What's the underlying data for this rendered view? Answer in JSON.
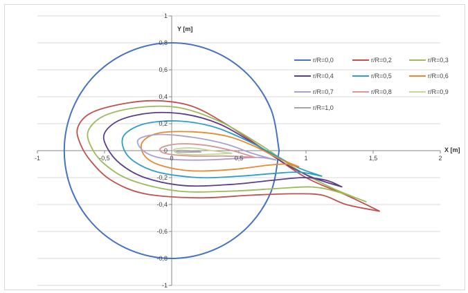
{
  "chart_data": {
    "type": "line",
    "title": "",
    "xlabel": "X [m]",
    "ylabel": "Y [m]",
    "xlim": [
      -1,
      2
    ],
    "ylim": [
      -1,
      1
    ],
    "x_ticks": [
      -1,
      -0.5,
      0,
      0.5,
      1,
      1.5,
      2
    ],
    "x_tick_labels": [
      "-1",
      "-0,5",
      "0",
      "0,5",
      "1",
      "1,5",
      "2"
    ],
    "y_ticks": [
      -1,
      -0.8,
      -0.6,
      -0.4,
      -0.2,
      0,
      0.2,
      0.4,
      0.6,
      0.8,
      1
    ],
    "y_tick_labels": [
      "-1",
      "-0,8",
      "-0,6",
      "-0,4",
      "-0,2",
      "0",
      "0,2",
      "0,4",
      "0,6",
      "0,8",
      "1"
    ],
    "grid": "horizontal",
    "legend_position": "top-right",
    "series": [
      {
        "name": "r/R=0,0",
        "color": "#4472C4",
        "points": [
          [
            0.8,
            0.0
          ],
          [
            0.739,
            0.306
          ],
          [
            0.566,
            0.566
          ],
          [
            0.306,
            0.739
          ],
          [
            0.0,
            0.8
          ],
          [
            -0.306,
            0.739
          ],
          [
            -0.566,
            0.566
          ],
          [
            -0.739,
            0.306
          ],
          [
            -0.8,
            0.0
          ],
          [
            -0.739,
            -0.306
          ],
          [
            -0.566,
            -0.566
          ],
          [
            -0.306,
            -0.739
          ],
          [
            0.0,
            -0.8
          ],
          [
            0.306,
            -0.739
          ],
          [
            0.566,
            -0.566
          ],
          [
            0.739,
            -0.306
          ],
          [
            0.8,
            0.0
          ]
        ]
      },
      {
        "name": "r/R=0,2",
        "color": "#C0504D",
        "points": [
          [
            1.55,
            -0.45
          ],
          [
            1.3,
            -0.33
          ],
          [
            1.0,
            -0.2
          ],
          [
            0.7,
            0.0
          ],
          [
            0.4,
            0.2
          ],
          [
            0.15,
            0.33
          ],
          [
            -0.1,
            0.37
          ],
          [
            -0.35,
            0.35
          ],
          [
            -0.6,
            0.28
          ],
          [
            -0.7,
            0.17
          ],
          [
            -0.68,
            0.05
          ],
          [
            -0.6,
            -0.08
          ],
          [
            -0.45,
            -0.22
          ],
          [
            -0.2,
            -0.32
          ],
          [
            0.2,
            -0.35
          ],
          [
            0.6,
            -0.33
          ],
          [
            0.9,
            -0.32
          ],
          [
            1.12,
            -0.33
          ],
          [
            1.3,
            -0.4
          ],
          [
            1.55,
            -0.45
          ]
        ]
      },
      {
        "name": "r/R=0,3",
        "color": "#9BBB59",
        "points": [
          [
            1.45,
            -0.38
          ],
          [
            1.2,
            -0.28
          ],
          [
            0.95,
            -0.15
          ],
          [
            0.65,
            0.05
          ],
          [
            0.35,
            0.22
          ],
          [
            0.05,
            0.32
          ],
          [
            -0.25,
            0.32
          ],
          [
            -0.5,
            0.26
          ],
          [
            -0.62,
            0.15
          ],
          [
            -0.6,
            0.03
          ],
          [
            -0.5,
            -0.1
          ],
          [
            -0.3,
            -0.22
          ],
          [
            0.05,
            -0.3
          ],
          [
            0.45,
            -0.3
          ],
          [
            0.8,
            -0.28
          ],
          [
            1.05,
            -0.27
          ],
          [
            1.25,
            -0.31
          ],
          [
            1.45,
            -0.38
          ]
        ]
      },
      {
        "name": "r/R=0,4",
        "color": "#5A3E8C",
        "points": [
          [
            1.27,
            -0.27
          ],
          [
            1.05,
            -0.2
          ],
          [
            0.85,
            -0.1
          ],
          [
            0.6,
            0.06
          ],
          [
            0.35,
            0.2
          ],
          [
            0.1,
            0.27
          ],
          [
            -0.15,
            0.28
          ],
          [
            -0.38,
            0.23
          ],
          [
            -0.5,
            0.13
          ],
          [
            -0.48,
            0.02
          ],
          [
            -0.38,
            -0.1
          ],
          [
            -0.2,
            -0.2
          ],
          [
            0.1,
            -0.26
          ],
          [
            0.45,
            -0.25
          ],
          [
            0.75,
            -0.22
          ],
          [
            0.98,
            -0.2
          ],
          [
            1.15,
            -0.22
          ],
          [
            1.27,
            -0.27
          ]
        ]
      },
      {
        "name": "r/R=0,5",
        "color": "#2E9EC4",
        "points": [
          [
            1.12,
            -0.19
          ],
          [
            0.95,
            -0.13
          ],
          [
            0.78,
            -0.04
          ],
          [
            0.55,
            0.08
          ],
          [
            0.3,
            0.18
          ],
          [
            0.05,
            0.22
          ],
          [
            -0.2,
            0.2
          ],
          [
            -0.35,
            0.12
          ],
          [
            -0.36,
            0.02
          ],
          [
            -0.28,
            -0.08
          ],
          [
            -0.1,
            -0.16
          ],
          [
            0.2,
            -0.2
          ],
          [
            0.5,
            -0.19
          ],
          [
            0.75,
            -0.17
          ],
          [
            0.95,
            -0.16
          ],
          [
            1.12,
            -0.19
          ]
        ]
      },
      {
        "name": "r/R=0,6",
        "color": "#E8892F",
        "points": [
          [
            0.95,
            -0.12
          ],
          [
            0.8,
            -0.06
          ],
          [
            0.6,
            0.04
          ],
          [
            0.4,
            0.11
          ],
          [
            0.15,
            0.14
          ],
          [
            -0.1,
            0.13
          ],
          [
            -0.22,
            0.06
          ],
          [
            -0.2,
            -0.04
          ],
          [
            -0.08,
            -0.11
          ],
          [
            0.15,
            -0.15
          ],
          [
            0.45,
            -0.14
          ],
          [
            0.7,
            -0.11
          ],
          [
            0.85,
            -0.1
          ],
          [
            0.95,
            -0.12
          ]
        ]
      },
      {
        "name": "r/R=0,7",
        "color": "#A9A0D0",
        "points": [
          [
            0.78,
            -0.07
          ],
          [
            0.6,
            -0.02
          ],
          [
            0.4,
            0.05
          ],
          [
            0.15,
            0.1
          ],
          [
            -0.1,
            0.12
          ],
          [
            -0.25,
            0.08
          ],
          [
            -0.2,
            -0.01
          ],
          [
            -0.05,
            -0.06
          ],
          [
            0.2,
            -0.07
          ],
          [
            0.45,
            -0.06
          ],
          [
            0.65,
            -0.05
          ],
          [
            0.78,
            -0.07
          ]
        ]
      },
      {
        "name": "r/R=0,8",
        "color": "#D99694",
        "points": [
          [
            0.62,
            -0.05
          ],
          [
            0.45,
            0.0
          ],
          [
            0.25,
            0.04
          ],
          [
            0.05,
            0.05
          ],
          [
            -0.08,
            0.02
          ],
          [
            -0.05,
            -0.02
          ],
          [
            0.15,
            -0.04
          ],
          [
            0.4,
            -0.04
          ],
          [
            0.62,
            -0.05
          ]
        ]
      },
      {
        "name": "r/R=0,9",
        "color": "#C4D79B",
        "points": [
          [
            0.45,
            -0.02
          ],
          [
            0.3,
            0.0
          ],
          [
            0.15,
            0.02
          ],
          [
            0.02,
            0.01
          ],
          [
            0.05,
            -0.02
          ],
          [
            0.2,
            -0.03
          ],
          [
            0.45,
            -0.02
          ]
        ]
      },
      {
        "name": "r/R=1,0",
        "color": "#A5A5A5",
        "points": [
          [
            0.22,
            -0.01
          ],
          [
            0.12,
            0.0
          ],
          [
            0.04,
            0.0
          ],
          [
            0.06,
            -0.01
          ],
          [
            0.22,
            -0.01
          ]
        ]
      }
    ]
  }
}
